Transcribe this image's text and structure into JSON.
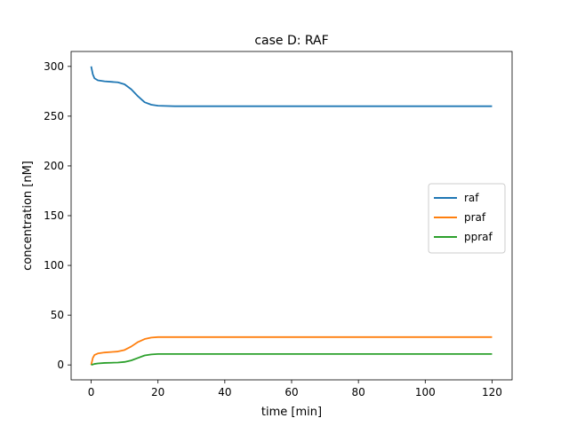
{
  "chart_data": {
    "type": "line",
    "title": "case D: RAF",
    "xlabel": "time [min]",
    "ylabel": "concentration [nM]",
    "xlim": [
      -6,
      126
    ],
    "ylim": [
      -15,
      315
    ],
    "xticks": [
      0,
      20,
      40,
      60,
      80,
      100,
      120
    ],
    "yticks": [
      0,
      50,
      100,
      150,
      200,
      250,
      300
    ],
    "xtick_labels": [
      "0",
      "20",
      "40",
      "60",
      "80",
      "100",
      "120"
    ],
    "ytick_labels": [
      "0",
      "50",
      "100",
      "150",
      "200",
      "250",
      "300"
    ],
    "legend_position": "right",
    "grid": false,
    "x": [
      0,
      0.5,
      1,
      2,
      4,
      6,
      8,
      10,
      12,
      14,
      16,
      18,
      20,
      25,
      30,
      40,
      50,
      60,
      70,
      80,
      90,
      100,
      110,
      120
    ],
    "series": [
      {
        "name": "raf",
        "color": "#1f77b4",
        "values": [
          300,
          292,
          288,
          286,
          285,
          284.5,
          284,
          282,
          277,
          270,
          264,
          261.5,
          260.5,
          260,
          260,
          260,
          260,
          260,
          260,
          260,
          260,
          260,
          260,
          260
        ]
      },
      {
        "name": "praf",
        "color": "#ff7f0e",
        "values": [
          0,
          7,
          10,
          11.5,
          12.5,
          13,
          13.5,
          15,
          18.5,
          23,
          26,
          27.5,
          28,
          28,
          28,
          28,
          28,
          28,
          28,
          28,
          28,
          28,
          28,
          28
        ]
      },
      {
        "name": "ppraf",
        "color": "#2ca02c",
        "values": [
          0,
          0.5,
          1,
          1.5,
          2,
          2.2,
          2.4,
          3,
          4.5,
          7,
          9.5,
          10.5,
          11,
          11,
          11,
          11,
          11,
          11,
          11,
          11,
          11,
          11,
          11,
          11
        ]
      }
    ]
  }
}
